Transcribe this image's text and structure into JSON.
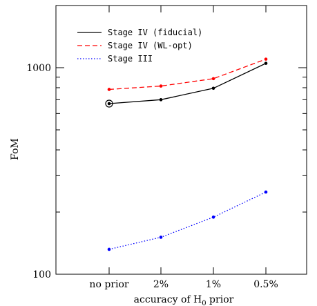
{
  "chart_data": {
    "type": "line",
    "categories": [
      "no prior",
      "2%",
      "1%",
      "0.5%"
    ],
    "xlabel_main": "accuracy of H",
    "xlabel_sub": "0",
    "xlabel_tail": " prior",
    "ylabel": "FoM",
    "yscale": "log",
    "ylim": [
      100,
      2000
    ],
    "ytick_labels": [
      "100",
      "1000"
    ],
    "legend_position": "top-left",
    "series": [
      {
        "name": "Stage IV (fiducial)",
        "values": [
          670,
          700,
          795,
          1050
        ],
        "color": "#000000",
        "style": "solid"
      },
      {
        "name": "Stage IV (WL-opt)",
        "values": [
          785,
          815,
          885,
          1100
        ],
        "color": "#ff0000",
        "style": "dashed"
      },
      {
        "name": "Stage III",
        "values": [
          132,
          151,
          189,
          250
        ],
        "color": "#0000ff",
        "style": "dotted"
      }
    ],
    "annotation": {
      "type": "circled-marker",
      "series_index": 0,
      "point_index": 0
    }
  }
}
